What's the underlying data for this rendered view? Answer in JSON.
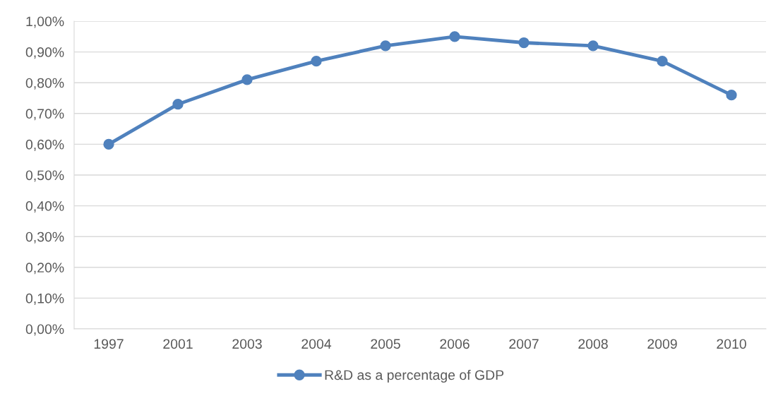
{
  "chart_data": {
    "type": "line",
    "categories": [
      "1997",
      "2001",
      "2003",
      "2004",
      "2005",
      "2006",
      "2007",
      "2008",
      "2009",
      "2010"
    ],
    "series": [
      {
        "name": "R&D as a percentage of GDP",
        "color": "#4f81bd",
        "values": [
          0.6,
          0.73,
          0.81,
          0.87,
          0.92,
          0.95,
          0.93,
          0.92,
          0.87,
          0.76
        ]
      }
    ],
    "ylim": [
      0,
      1.0
    ],
    "yticks": [
      {
        "value": 0,
        "label": "0,00%"
      },
      {
        "value": 0.1,
        "label": "0,10%"
      },
      {
        "value": 0.2,
        "label": "0,20%"
      },
      {
        "value": 0.3,
        "label": "0,30%"
      },
      {
        "value": 0.4,
        "label": "0,40%"
      },
      {
        "value": 0.5,
        "label": "0,50%"
      },
      {
        "value": 0.6,
        "label": "0,60%"
      },
      {
        "value": 0.7,
        "label": "0,70%"
      },
      {
        "value": 0.8,
        "label": "0,80%"
      },
      {
        "value": 0.9,
        "label": "0,90%"
      },
      {
        "value": 1.0,
        "label": "1,00%"
      }
    ],
    "grid": "y",
    "legend": "bottom",
    "marker": "circle",
    "line_style": "solid"
  }
}
